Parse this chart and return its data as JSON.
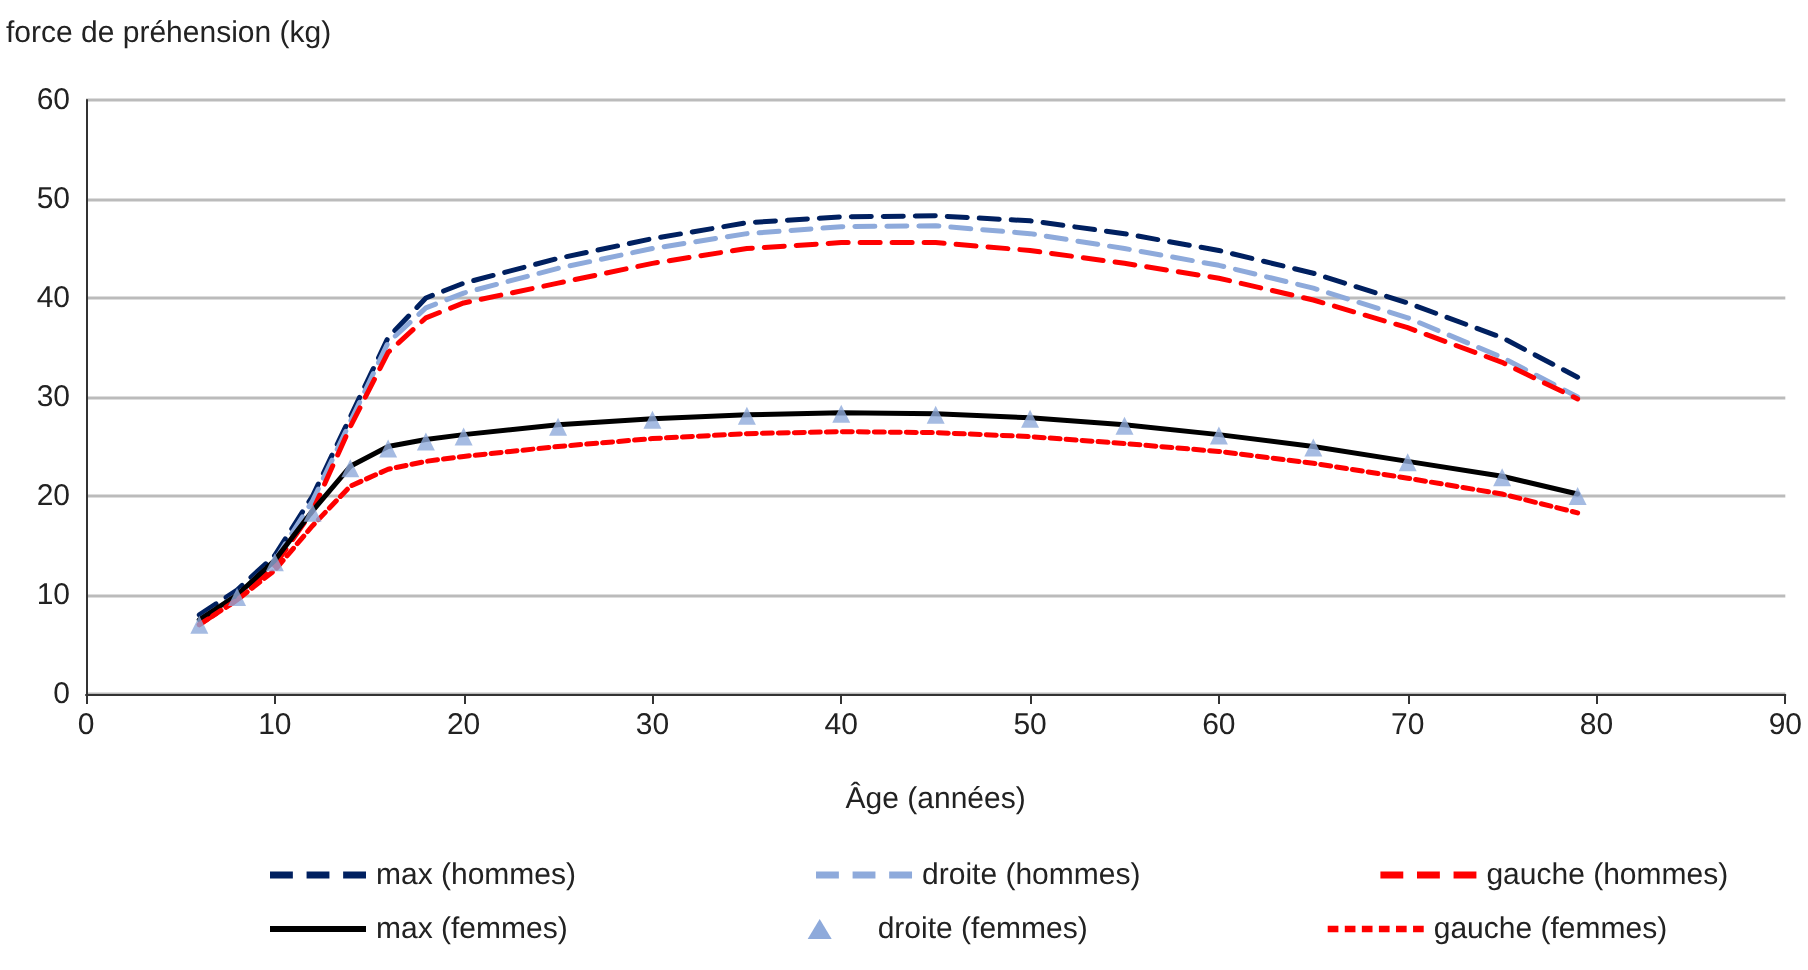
{
  "chart_data": {
    "type": "line",
    "ylabel": "force de préhension (kg)",
    "xlabel": "Âge (années)",
    "x": [
      6,
      8,
      10,
      12,
      14,
      16,
      18,
      20,
      25,
      30,
      35,
      40,
      45,
      50,
      55,
      60,
      65,
      70,
      75,
      79
    ],
    "xlim": [
      0,
      90
    ],
    "xticks": [
      0,
      10,
      20,
      30,
      40,
      50,
      60,
      70,
      80,
      90
    ],
    "ylim": [
      0,
      60
    ],
    "yticks": [
      0,
      10,
      20,
      30,
      40,
      50,
      60
    ],
    "grid": "y",
    "legend": "bottom",
    "series": [
      {
        "name": "max (hommes)",
        "color": "#002060",
        "line_style": "dashed",
        "marker": "none",
        "values": [
          8,
          10.5,
          14,
          20,
          28,
          36,
          40,
          41.5,
          44,
          46,
          47.6,
          48.2,
          48.3,
          47.8,
          46.5,
          44.8,
          42.5,
          39.5,
          36,
          32
        ]
      },
      {
        "name": "droite (hommes)",
        "color": "#8eaadb",
        "line_style": "dashed",
        "marker": "none",
        "values": [
          7.5,
          10,
          13.5,
          19.5,
          27.5,
          35.5,
          39,
          40.5,
          43,
          45,
          46.5,
          47.2,
          47.3,
          46.5,
          45,
          43.3,
          41,
          38,
          34,
          30
        ]
      },
      {
        "name": "gauche (hommes)",
        "color": "#ff0000",
        "line_style": "dashed",
        "marker": "none",
        "values": [
          7,
          9.5,
          13,
          18.5,
          27,
          34.5,
          38,
          39.5,
          41.5,
          43.5,
          45,
          45.6,
          45.6,
          44.8,
          43.5,
          42,
          39.8,
          37,
          33.5,
          29.8
        ]
      },
      {
        "name": "max (femmes)",
        "color": "#000000",
        "line_style": "solid",
        "marker": "none",
        "values": [
          7.5,
          10,
          13.5,
          18.5,
          23,
          25,
          25.7,
          26.2,
          27.2,
          27.8,
          28.2,
          28.4,
          28.3,
          27.9,
          27.2,
          26.2,
          25,
          23.5,
          22,
          20.2
        ]
      },
      {
        "name": "droite (femmes)",
        "type": "scatter",
        "color": "#8eaadb",
        "marker": "triangle",
        "values": [
          7,
          9.8,
          13.3,
          18.3,
          22.8,
          24.8,
          25.5,
          26,
          27,
          27.7,
          28.1,
          28.3,
          28.2,
          27.8,
          27.1,
          26.1,
          24.9,
          23.4,
          21.9,
          20
        ]
      },
      {
        "name": "gauche (femmes)",
        "color": "#ff0000",
        "line_style": "dotted",
        "marker": "none",
        "values": [
          7,
          9.5,
          12.5,
          17,
          21,
          22.7,
          23.5,
          24,
          25,
          25.8,
          26.3,
          26.5,
          26.4,
          26,
          25.3,
          24.5,
          23.3,
          21.8,
          20.2,
          18.3
        ]
      }
    ]
  }
}
